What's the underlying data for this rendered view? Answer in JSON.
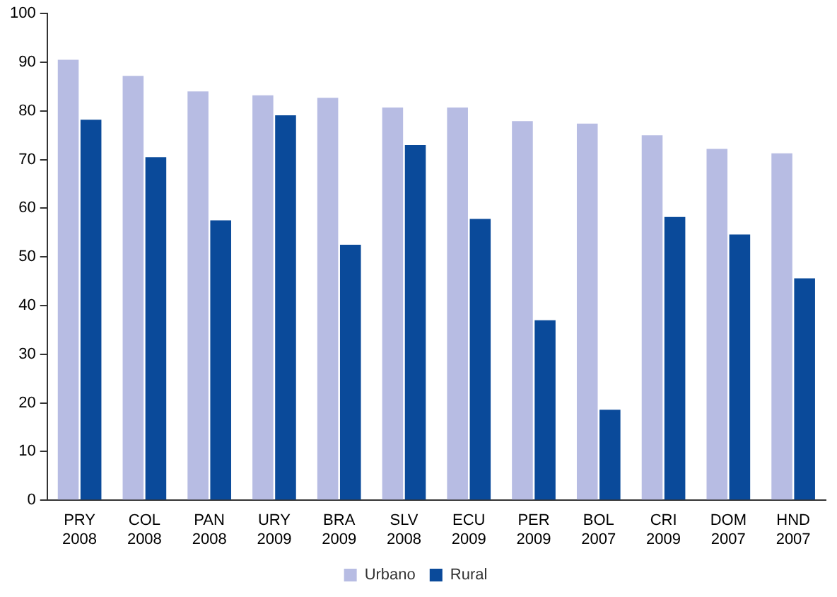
{
  "chart_data": {
    "type": "bar",
    "categories": [
      "PRY\n2008",
      "COL\n2008",
      "PAN\n2008",
      "URY\n2009",
      "BRA\n2009",
      "SLV\n2008",
      "ECU\n2009",
      "PER\n2009",
      "BOL\n2007",
      "CRI\n2009",
      "DOM\n2007",
      "HND\n2007"
    ],
    "series": [
      {
        "name": "Urbano",
        "color": "#b7bce3",
        "values": [
          90.5,
          87.2,
          84,
          83.2,
          82.7,
          80.7,
          80.7,
          77.9,
          77.4,
          75,
          72.2,
          71.3
        ]
      },
      {
        "name": "Rural",
        "color": "#0a4a9a",
        "values": [
          78.2,
          70.5,
          57.5,
          79.1,
          52.5,
          73,
          57.8,
          37,
          18.6,
          58.2,
          54.6,
          45.6
        ]
      }
    ],
    "ylim": [
      0,
      100
    ],
    "yticks": [
      0,
      10,
      20,
      30,
      40,
      50,
      60,
      70,
      80,
      90,
      100
    ],
    "grid": false,
    "legend": "bottom"
  }
}
